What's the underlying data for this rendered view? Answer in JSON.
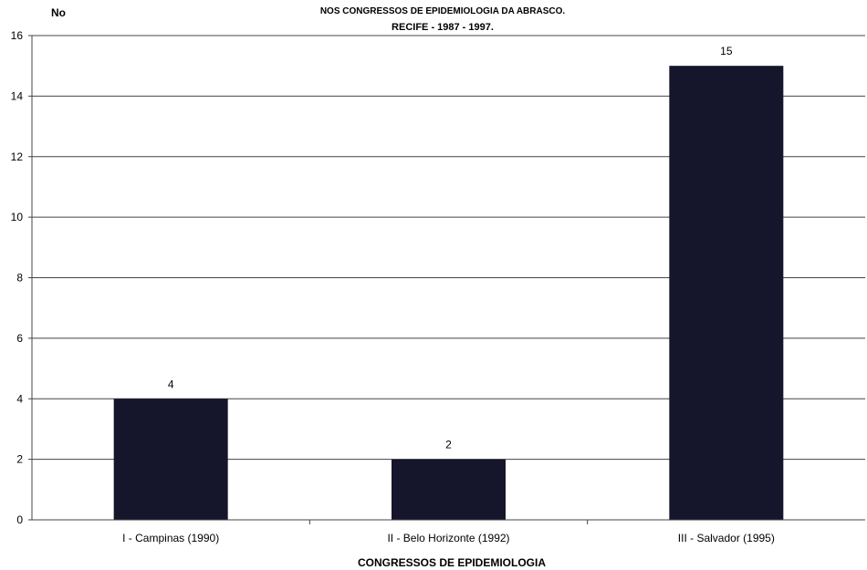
{
  "chart_data": {
    "type": "bar",
    "title": "NOS CONGRESSOS DE EPIDEMIOLOGIA DA ABRASCO.",
    "subtitle": "RECIFE - 1987 - 1997.",
    "ylabel": "No",
    "xlabel": "CONGRESSOS DE EPIDEMIOLOGIA",
    "categories": [
      "I - Campinas (1990)",
      "II - Belo Horizonte (1992)",
      "III - Salvador (1995)"
    ],
    "values": [
      4,
      2,
      15
    ],
    "data_labels": [
      "4",
      "2",
      "15"
    ],
    "ylim": [
      0,
      16
    ],
    "yticks": [
      0,
      2,
      4,
      6,
      8,
      10,
      12,
      14,
      16
    ],
    "grid": true,
    "bar_color": "#15152b"
  }
}
